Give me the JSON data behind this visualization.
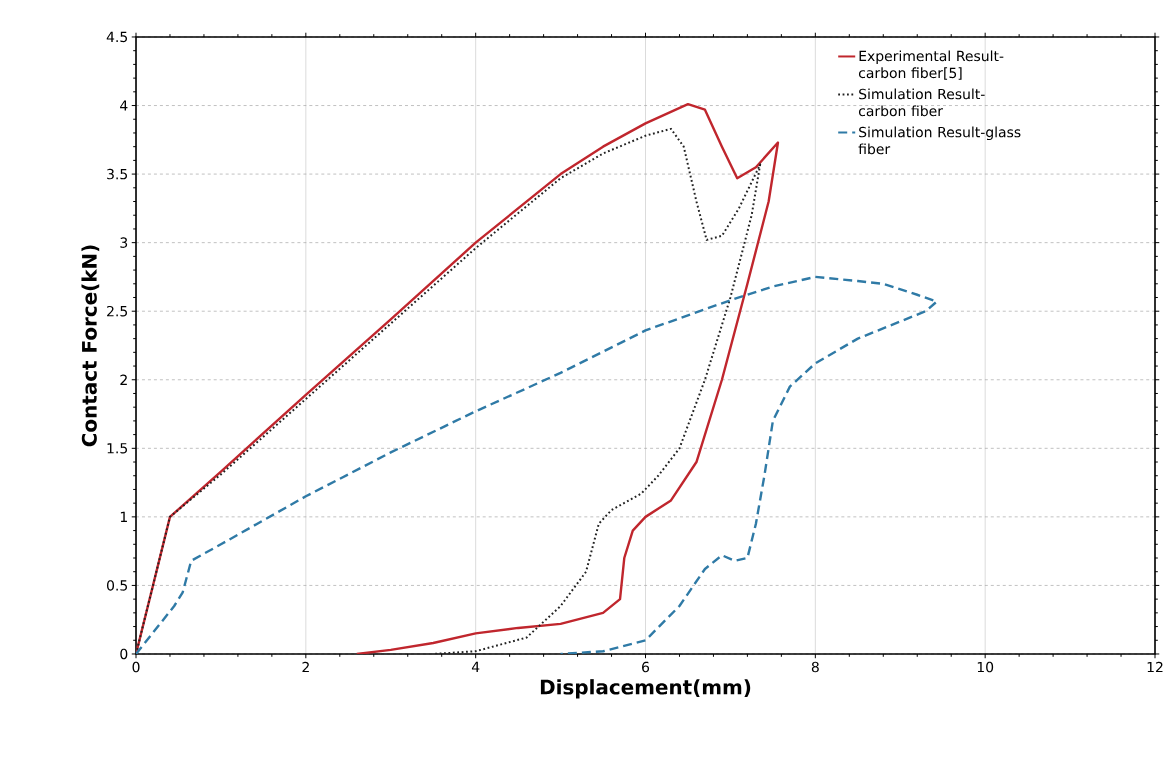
{
  "chart_data": {
    "type": "line",
    "xlabel": "Displacement(mm)",
    "ylabel": "Contact Force(kN)",
    "xlim": [
      0,
      12
    ],
    "ylim": [
      0,
      4.5
    ],
    "xticks": [
      0,
      2,
      4,
      6,
      8,
      10,
      12
    ],
    "yticks": [
      0,
      0.5,
      1,
      1.5,
      2,
      2.5,
      3,
      3.5,
      4,
      4.5
    ],
    "grid": true,
    "legend": "top right",
    "series": [
      {
        "name": "Experimental Result-carbon fiber[5]",
        "color": "#c0262d",
        "line_style": "solid",
        "x": [
          0,
          0.4,
          1,
          2,
          3,
          4,
          5,
          5.5,
          6,
          6.5,
          6.7,
          6.9,
          7.08,
          7.3,
          7.56,
          7.45,
          7.2,
          6.9,
          6.6,
          6.3,
          6.0,
          5.85,
          5.75,
          5.7,
          5.5,
          5.0,
          4.5,
          4,
          3.5,
          3,
          2.6
        ],
        "values": [
          0,
          1.0,
          1.33,
          1.89,
          2.44,
          3.0,
          3.5,
          3.7,
          3.87,
          4.01,
          3.97,
          3.7,
          3.47,
          3.55,
          3.73,
          3.3,
          2.7,
          2.0,
          1.4,
          1.12,
          1.0,
          0.9,
          0.7,
          0.4,
          0.3,
          0.22,
          0.19,
          0.15,
          0.08,
          0.03,
          0
        ]
      },
      {
        "name": "Simulation Result-carbon fiber",
        "color": "#222222",
        "line_style": "dotted",
        "x": [
          0,
          0.4,
          1,
          2,
          3,
          4,
          5,
          5.5,
          6,
          6.3,
          6.45,
          6.6,
          6.72,
          6.9,
          7.1,
          7.35,
          7.25,
          7.0,
          6.7,
          6.4,
          6.15,
          5.95,
          5.6,
          5.45,
          5.3,
          5.0,
          4.6,
          4.0,
          3.5
        ],
        "values": [
          0,
          1.0,
          1.31,
          1.86,
          2.41,
          2.96,
          3.47,
          3.65,
          3.78,
          3.83,
          3.7,
          3.3,
          3.02,
          3.05,
          3.25,
          3.57,
          3.2,
          2.6,
          2.0,
          1.5,
          1.3,
          1.17,
          1.05,
          0.95,
          0.6,
          0.35,
          0.12,
          0.02,
          0
        ]
      },
      {
        "name": "Simulation Result-glass fiber",
        "color": "#2f7aa6",
        "line_style": "dashed",
        "x": [
          0,
          0.45,
          0.55,
          0.65,
          1,
          2,
          3,
          4,
          5,
          6,
          7,
          7.5,
          8,
          8.5,
          8.8,
          9.2,
          9.43,
          9.3,
          8.5,
          8,
          7.7,
          7.5,
          7.4,
          7.3,
          7.2,
          7.05,
          6.9,
          6.7,
          6.4,
          6.0,
          5.5,
          5.0
        ],
        "values": [
          0,
          0.35,
          0.45,
          0.68,
          0.8,
          1.15,
          1.47,
          1.77,
          2.05,
          2.36,
          2.58,
          2.68,
          2.75,
          2.72,
          2.7,
          2.62,
          2.57,
          2.5,
          2.3,
          2.12,
          1.95,
          1.7,
          1.3,
          0.95,
          0.7,
          0.68,
          0.72,
          0.62,
          0.35,
          0.1,
          0.02,
          0
        ]
      }
    ]
  }
}
